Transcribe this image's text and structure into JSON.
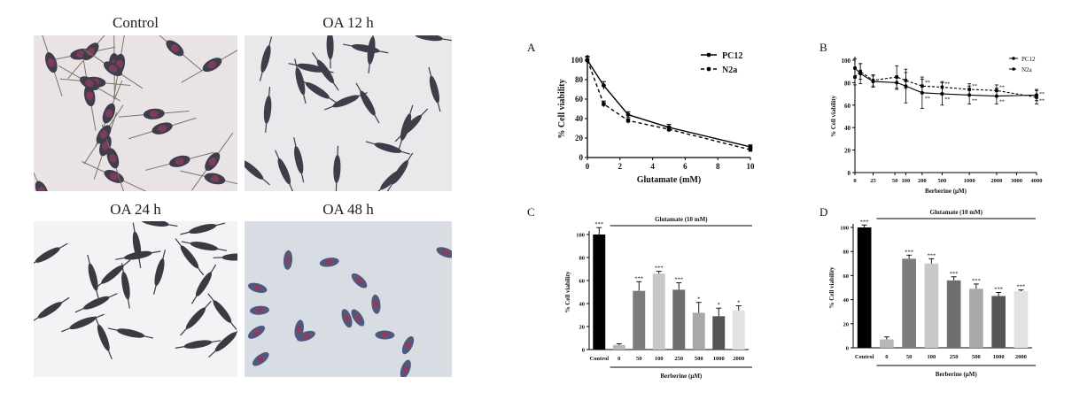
{
  "micrographs": [
    {
      "label": "Control",
      "bg": "#e9e3e6",
      "cell": "#3f3c4c",
      "nucleus": "#7d3d5a",
      "style": "elongated"
    },
    {
      "label": "OA 12 h",
      "bg": "#ebe8ec",
      "cell": "#3e3d4a",
      "nucleus": "#4a4456",
      "style": "spindle"
    },
    {
      "label": "OA 24 h",
      "bg": "#f2f3f4",
      "cell": "#3a3b42",
      "nucleus": "#3a3b42",
      "style": "spindle"
    },
    {
      "label": "OA 48 h",
      "bg": "#d8dde4",
      "cell": "#50587e",
      "nucleus": "#8a3e5c",
      "style": "round"
    }
  ],
  "chart_data": [
    {
      "panel": "A",
      "type": "line",
      "xlabel": "Glutamate (mM)",
      "ylabel": "% Cell viability",
      "xlim": [
        0,
        10
      ],
      "ylim": [
        0,
        100
      ],
      "xticks": [
        0,
        2,
        4,
        6,
        8,
        10
      ],
      "yticks": [
        0,
        20,
        40,
        60,
        80,
        100
      ],
      "legend_position": "top-right",
      "series": [
        {
          "name": "PC12",
          "style": "solid",
          "x": [
            0,
            1,
            2.5,
            5,
            10
          ],
          "y": [
            100,
            74,
            44,
            31,
            11
          ],
          "err": [
            4,
            4,
            3,
            3,
            2
          ]
        },
        {
          "name": "N2a",
          "style": "dashed",
          "x": [
            0,
            1,
            2.5,
            5,
            10
          ],
          "y": [
            100,
            55,
            38,
            29,
            8
          ],
          "err": [
            3,
            3,
            3,
            3,
            2
          ]
        }
      ]
    },
    {
      "panel": "B",
      "type": "line",
      "xlabel": "Berberine (μM)",
      "ylabel": "% Cell viability",
      "ylim": [
        0,
        100
      ],
      "yticks": [
        0,
        20,
        40,
        60,
        80,
        100
      ],
      "xticks": [
        "0",
        "25",
        "50",
        "100",
        "200",
        "500",
        "1000",
        "2000",
        "3000",
        "4000"
      ],
      "legend_position": "top-right",
      "series": [
        {
          "name": "PC12",
          "style": "solid",
          "x": [
            0,
            10,
            25,
            50,
            100,
            200,
            500,
            1000,
            2000,
            4000
          ],
          "y": [
            93,
            88,
            81,
            80,
            77,
            71,
            70,
            69,
            68,
            69
          ],
          "err": [
            8,
            9,
            5,
            6,
            15,
            14,
            10,
            8,
            7,
            5
          ],
          "annot": [
            "",
            "",
            "",
            "",
            "",
            "**",
            "**",
            "**",
            "**",
            "**"
          ]
        },
        {
          "name": "N2a",
          "style": "dashed",
          "x": [
            0,
            10,
            25,
            50,
            100,
            200,
            500,
            1000,
            2000,
            4000
          ],
          "y": [
            85,
            90,
            82,
            85,
            82,
            77,
            76,
            74,
            73,
            67
          ],
          "err": [
            7,
            7,
            5,
            10,
            7,
            6,
            5,
            5,
            5,
            6
          ],
          "annot": [
            "",
            "",
            "",
            "",
            "",
            "**",
            "**",
            "**",
            "**",
            "**"
          ]
        }
      ]
    },
    {
      "panel": "C",
      "type": "bar",
      "bracket_label": "Glutamate (10 mM)",
      "xlabel": "Berberine (μM)",
      "ylabel": "% Cell viability",
      "ylim": [
        0,
        100
      ],
      "yticks": [
        0,
        20,
        40,
        60,
        80,
        100
      ],
      "categories": [
        "Control",
        "0",
        "50",
        "100",
        "250",
        "500",
        "1000",
        "2000"
      ],
      "values": [
        100,
        4,
        51,
        66,
        52,
        32,
        29,
        34
      ],
      "errors": [
        6,
        1,
        8,
        2,
        6,
        9,
        7,
        4
      ],
      "annot": [
        "***",
        "",
        "***",
        "***",
        "***",
        "*",
        "*",
        "*"
      ],
      "colors": [
        "#000000",
        "#b8b8b8",
        "#7c7c7c",
        "#c8c8c8",
        "#6e6e6e",
        "#a8a8a8",
        "#555555",
        "#e2e2e2"
      ]
    },
    {
      "panel": "D",
      "type": "bar",
      "bracket_label": "Glutamate (10 mM)",
      "xlabel": "Berberine (μM)",
      "ylabel": "% Cell viability",
      "ylim": [
        0,
        100
      ],
      "yticks": [
        0,
        20,
        40,
        60,
        80,
        100
      ],
      "categories": [
        "Control",
        "0",
        "50",
        "100",
        "250",
        "500",
        "1000",
        "2000"
      ],
      "values": [
        100,
        7,
        74,
        70,
        56,
        49,
        43,
        47
      ],
      "errors": [
        2,
        2,
        3,
        4,
        3,
        4,
        3,
        1
      ],
      "annot": [
        "***",
        "",
        "***",
        "***",
        "***",
        "***",
        "***",
        "***"
      ],
      "colors": [
        "#000000",
        "#b8b8b8",
        "#7c7c7c",
        "#c8c8c8",
        "#6e6e6e",
        "#a8a8a8",
        "#555555",
        "#e2e2e2"
      ]
    }
  ]
}
